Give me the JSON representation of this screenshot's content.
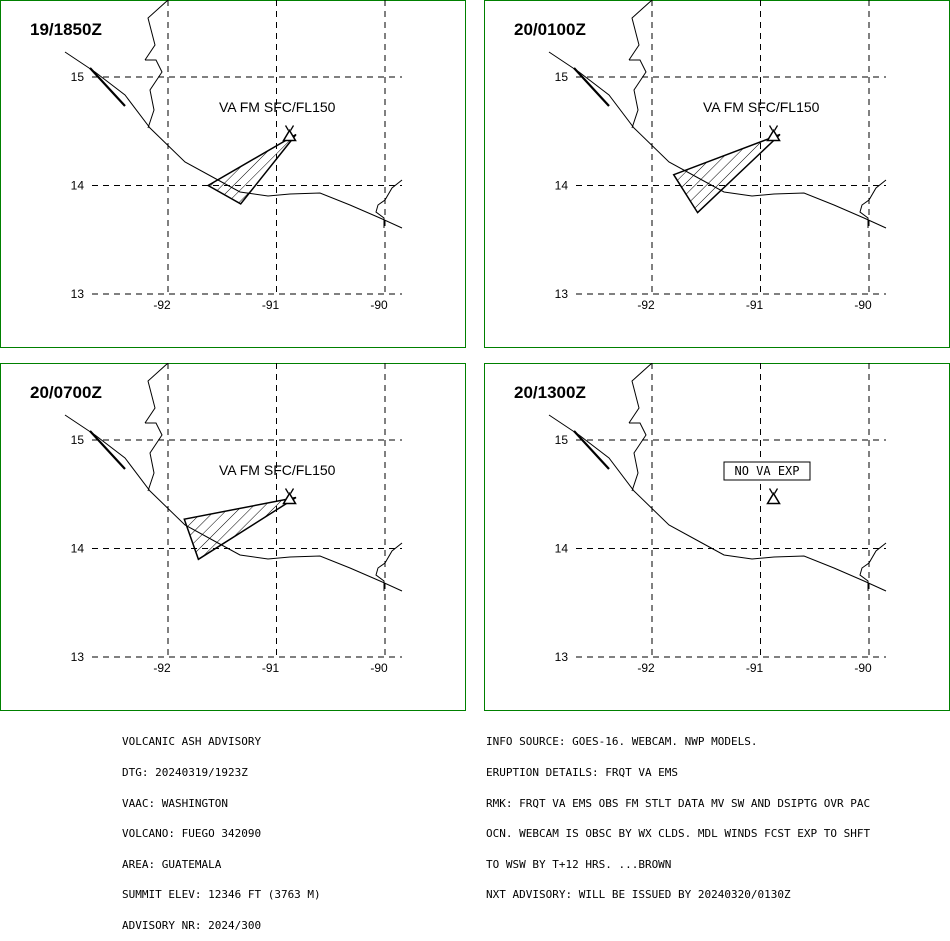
{
  "panels": [
    {
      "time": "19/1850Z",
      "label": "VA FM SFC/FL150",
      "lat_labels": [
        "15",
        "14",
        "13"
      ],
      "lon_labels": [
        "-92",
        "-91",
        "-90"
      ],
      "ash_polygon": [
        [
          -90.82,
          14.47
        ],
        [
          -91.63,
          14.0
        ],
        [
          -91.33,
          13.83
        ]
      ]
    },
    {
      "time": "20/0100Z",
      "label": "VA FM SFC/FL150",
      "lat_labels": [
        "15",
        "14",
        "13"
      ],
      "lon_labels": [
        "-92",
        "-91",
        "-90"
      ],
      "ash_polygon": [
        [
          -90.82,
          14.47
        ],
        [
          -91.8,
          14.1
        ],
        [
          -91.58,
          13.75
        ]
      ]
    },
    {
      "time": "20/0700Z",
      "label": "VA FM SFC/FL150",
      "lat_labels": [
        "15",
        "14",
        "13"
      ],
      "lon_labels": [
        "-92",
        "-91",
        "-90"
      ],
      "ash_polygon": [
        [
          -90.82,
          14.47
        ],
        [
          -91.85,
          14.27
        ],
        [
          -91.72,
          13.9
        ]
      ]
    },
    {
      "time": "20/1300Z",
      "label": "NO VA EXP",
      "boxed": true,
      "lat_labels": [
        "15",
        "14",
        "13"
      ],
      "lon_labels": [
        "-92",
        "-91",
        "-90"
      ],
      "ash_polygon": []
    }
  ],
  "volcano": {
    "lon": -90.88,
    "lat": 14.47
  },
  "advisory_left": [
    "VOLCANIC ASH ADVISORY",
    "DTG: 20240319/1923Z",
    "VAAC: WASHINGTON",
    "VOLCANO: FUEGO 342090",
    "AREA: GUATEMALA",
    "SUMMIT ELEV: 12346 FT (3763 M)",
    "ADVISORY NR: 2024/300"
  ],
  "advisory_right": [
    "INFO SOURCE: GOES-16. WEBCAM. NWP MODELS.",
    "ERUPTION DETAILS: FRQT VA EMS",
    "RMK: FRQT VA EMS OBS FM STLT DATA MV SW AND DSIPTG OVR PAC",
    "OCN. WEBCAM IS OBSC BY WX CLDS. MDL WINDS FCST EXP TO SHFT",
    "TO WSW BY T+12 HRS. ...BROWN",
    "NXT ADVISORY: WILL BE ISSUED BY 20240320/0130Z"
  ],
  "colors": {
    "border": "#008000",
    "lines": "#000000",
    "background": "#ffffff"
  }
}
